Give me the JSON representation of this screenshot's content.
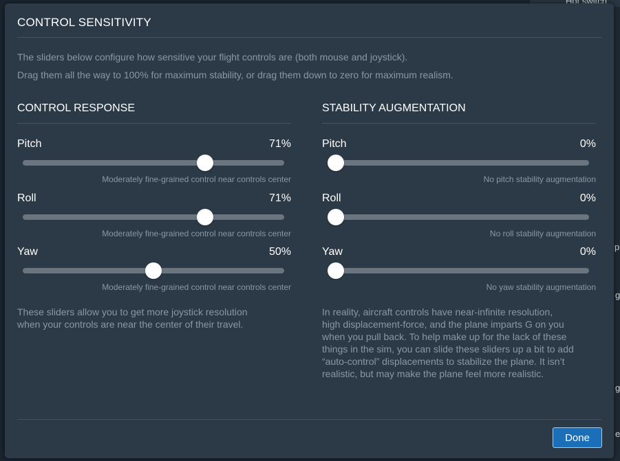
{
  "background": {
    "snippets": [
      "Hot switch",
      "ple",
      "g",
      "g",
      "e"
    ]
  },
  "dialog": {
    "title": "CONTROL SENSITIVITY",
    "intro_line1": "The sliders below configure how sensitive your flight controls are (both mouse and joystick).",
    "intro_line2": "Drag them all the way to 100% for maximum stability, or drag them down to zero for maximum realism.",
    "done_label": "Done"
  },
  "control_response": {
    "title": "CONTROL RESPONSE",
    "sliders": [
      {
        "label": "Pitch",
        "value_text": "71%",
        "value": 71,
        "description": "Moderately fine-grained control near controls center"
      },
      {
        "label": "Roll",
        "value_text": "71%",
        "value": 71,
        "description": "Moderately fine-grained control near controls center"
      },
      {
        "label": "Yaw",
        "value_text": "50%",
        "value": 50,
        "description": "Moderately fine-grained control near controls center"
      }
    ],
    "footnote_line1": "These sliders allow you to get more joystick resolution",
    "footnote_line2": "when your controls are near the center of their travel."
  },
  "stability_augmentation": {
    "title": "STABILITY AUGMENTATION",
    "sliders": [
      {
        "label": "Pitch",
        "value_text": "0%",
        "value": 0,
        "description": "No pitch stability augmentation"
      },
      {
        "label": "Roll",
        "value_text": "0%",
        "value": 0,
        "description": "No roll stability augmentation"
      },
      {
        "label": "Yaw",
        "value_text": "0%",
        "value": 0,
        "description": "No yaw stability augmentation"
      }
    ],
    "footnote_lines": [
      "In reality, aircraft controls have near-infinite resolution,",
      "high displacement-force, and the plane imparts G on you",
      "when you pull back. To help make up for the lack of these",
      "things in the sim, you can slide these sliders up a bit to add",
      "“auto-control” displacements to stabilize the plane. It isn’t",
      "realistic, but may make the plane feel more realistic."
    ]
  },
  "colors": {
    "dialog_bg": "#2c3946",
    "accent_button": "#1a6fb8",
    "track": "#6b757f",
    "muted_text": "#8c97a2"
  }
}
